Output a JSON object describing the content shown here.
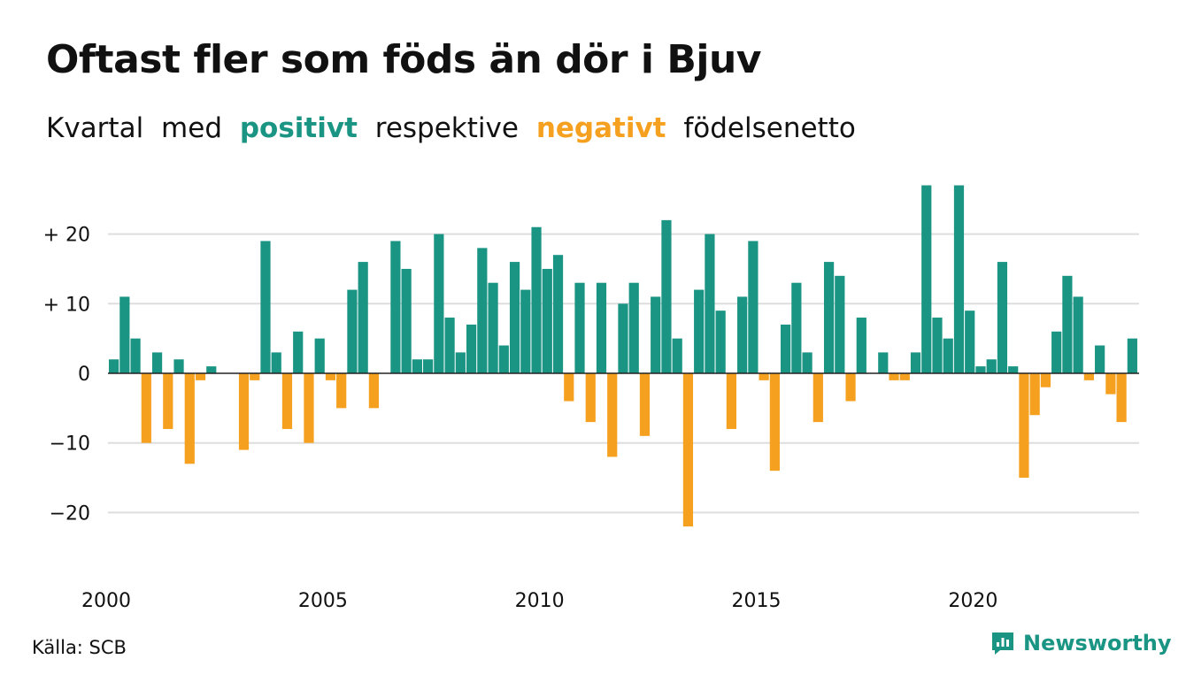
{
  "title": "Oftast fler som föds än dör i Bjuv",
  "subtitle": {
    "words": [
      "Kvartal",
      "med",
      "positivt",
      "respektive",
      "negativt",
      "födelsenetto"
    ]
  },
  "source": "Källa: SCB",
  "brand": {
    "name": "Newsworthy",
    "icon": "newsworthy-logo-icon"
  },
  "colors": {
    "positive": "#1a9483",
    "negative": "#f5a01e",
    "grid": "#dddddd",
    "text": "#111111"
  },
  "chart_data": {
    "type": "bar",
    "x_start": 2000,
    "x_step": 0.25,
    "values": [
      2,
      11,
      5,
      -10,
      3,
      -8,
      2,
      -13,
      -1,
      1,
      0,
      0,
      -11,
      -1,
      19,
      3,
      -8,
      6,
      -10,
      5,
      -1,
      -5,
      12,
      16,
      -5,
      0,
      19,
      15,
      2,
      2,
      20,
      8,
      3,
      7,
      18,
      13,
      4,
      16,
      12,
      21,
      15,
      17,
      -4,
      13,
      -7,
      13,
      -12,
      10,
      13,
      -9,
      11,
      22,
      5,
      -22,
      12,
      20,
      9,
      -8,
      11,
      19,
      -1,
      -14,
      7,
      13,
      3,
      -7,
      16,
      14,
      -4,
      8,
      0,
      3,
      -1,
      -1,
      3,
      27,
      8,
      5,
      27,
      9,
      1,
      2,
      16,
      1,
      -15,
      -6,
      -2,
      6,
      14,
      11,
      -1,
      4,
      -3,
      -7,
      5
    ],
    "y_ticks": [
      {
        "value": 20,
        "label": "+ 20"
      },
      {
        "value": 10,
        "label": "+ 10"
      },
      {
        "value": 0,
        "label": "0"
      },
      {
        "value": -10,
        "label": "−10"
      },
      {
        "value": -20,
        "label": "−20"
      }
    ],
    "x_ticks": [
      {
        "value": 2000,
        "label": "2000"
      },
      {
        "value": 2005,
        "label": "2005"
      },
      {
        "value": 2010,
        "label": "2010"
      },
      {
        "value": 2015,
        "label": "2015"
      },
      {
        "value": 2020,
        "label": "2020"
      }
    ],
    "ylim": [
      -27,
      27
    ],
    "xlim": [
      2000,
      2023.75
    ],
    "grid": true,
    "legend": "in subtitle"
  }
}
